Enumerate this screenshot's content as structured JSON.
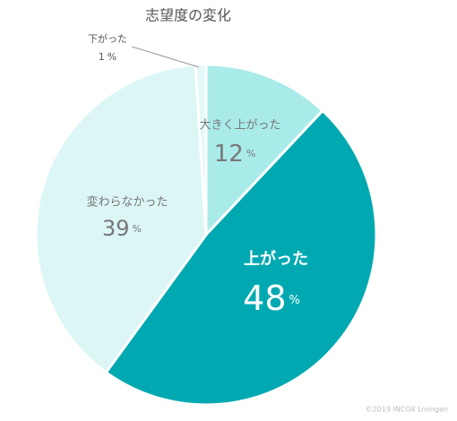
{
  "chart_data": {
    "type": "pie",
    "title": "志望度の変化",
    "categories": [
      "大きく上がった",
      "上がった",
      "変わらなかった",
      "下がった"
    ],
    "values": [
      12,
      48,
      39,
      1
    ],
    "unit": "%",
    "colors": [
      "#a9ebe9",
      "#00a9b1",
      "#dcf6f6",
      "#e3f8f8"
    ],
    "footer": "©2019 INCOX Livingen"
  }
}
